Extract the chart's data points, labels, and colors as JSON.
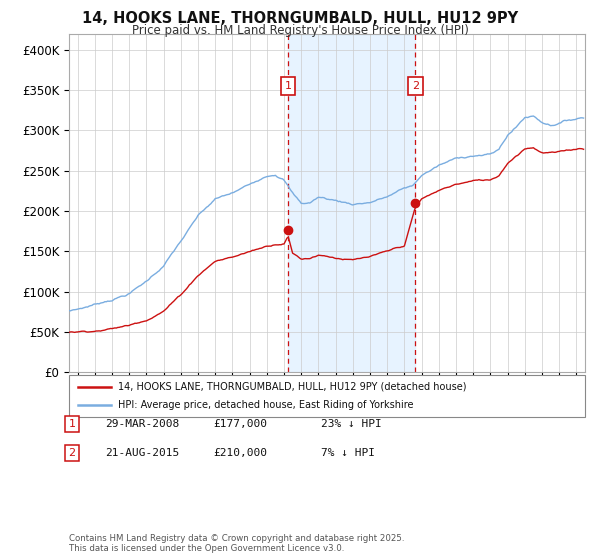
{
  "title": "14, HOOKS LANE, THORNGUMBALD, HULL, HU12 9PY",
  "subtitle": "Price paid vs. HM Land Registry's House Price Index (HPI)",
  "ylim": [
    0,
    420000
  ],
  "yticks": [
    0,
    50000,
    100000,
    150000,
    200000,
    250000,
    300000,
    350000,
    400000
  ],
  "ytick_labels": [
    "£0",
    "£50K",
    "£100K",
    "£150K",
    "£200K",
    "£250K",
    "£300K",
    "£350K",
    "£400K"
  ],
  "xlim_start": 1995.5,
  "xlim_end": 2025.5,
  "legend_line1": "14, HOOKS LANE, THORNGUMBALD, HULL, HU12 9PY (detached house)",
  "legend_line2": "HPI: Average price, detached house, East Riding of Yorkshire",
  "sale1_date": 2008.23,
  "sale1_price": 177000,
  "sale1_text": "29-MAR-2008",
  "sale1_pct": "23% ↓ HPI",
  "sale2_date": 2015.64,
  "sale2_price": 210000,
  "sale2_text": "21-AUG-2015",
  "sale2_pct": "7% ↓ HPI",
  "footnote": "Contains HM Land Registry data © Crown copyright and database right 2025.\nThis data is licensed under the Open Government Licence v3.0.",
  "hpi_color": "#7aade0",
  "price_color": "#cc1111",
  "sale_box_color": "#cc1111",
  "shading_color": "#ddeeff",
  "background_color": "#ffffff",
  "grid_color": "#cccccc",
  "hpi_anchors_t": [
    1995.0,
    1996.0,
    1997.0,
    1998.0,
    1999.0,
    2000.0,
    2001.0,
    2002.0,
    2003.0,
    2004.0,
    2005.0,
    2006.0,
    2007.0,
    2007.5,
    2008.0,
    2008.5,
    2009.0,
    2009.5,
    2010.0,
    2011.0,
    2012.0,
    2013.0,
    2014.0,
    2015.0,
    2015.5,
    2016.0,
    2017.0,
    2018.0,
    2019.0,
    2020.0,
    2020.5,
    2021.0,
    2021.5,
    2022.0,
    2022.5,
    2023.0,
    2023.5,
    2024.0,
    2024.5,
    2025.3
  ],
  "hpi_anchors_v": [
    75000,
    79000,
    85000,
    92000,
    100000,
    115000,
    135000,
    165000,
    195000,
    215000,
    222000,
    232000,
    245000,
    248000,
    242000,
    225000,
    212000,
    213000,
    220000,
    216000,
    212000,
    215000,
    222000,
    232000,
    235000,
    248000,
    260000,
    268000,
    273000,
    274000,
    280000,
    298000,
    308000,
    320000,
    322000,
    315000,
    312000,
    315000,
    318000,
    322000
  ],
  "price_anchors_t": [
    1995.0,
    1996.0,
    1997.0,
    1998.0,
    1999.0,
    2000.0,
    2001.0,
    2002.0,
    2003.0,
    2004.0,
    2005.0,
    2006.0,
    2007.0,
    2007.5,
    2008.0,
    2008.23,
    2008.5,
    2009.0,
    2009.5,
    2010.0,
    2011.0,
    2012.0,
    2013.0,
    2014.0,
    2015.0,
    2015.64,
    2016.0,
    2017.0,
    2018.0,
    2019.0,
    2020.0,
    2020.5,
    2021.0,
    2022.0,
    2022.5,
    2023.0,
    2024.0,
    2024.5,
    2025.3
  ],
  "price_anchors_v": [
    50000,
    51000,
    53000,
    56000,
    60000,
    68000,
    80000,
    100000,
    125000,
    143000,
    148000,
    155000,
    162000,
    165000,
    167000,
    177000,
    155000,
    148000,
    149000,
    154000,
    151000,
    148000,
    151000,
    156000,
    163000,
    210000,
    220000,
    230000,
    238000,
    242000,
    243000,
    249000,
    265000,
    284000,
    286000,
    280000,
    280000,
    282000,
    285000
  ]
}
